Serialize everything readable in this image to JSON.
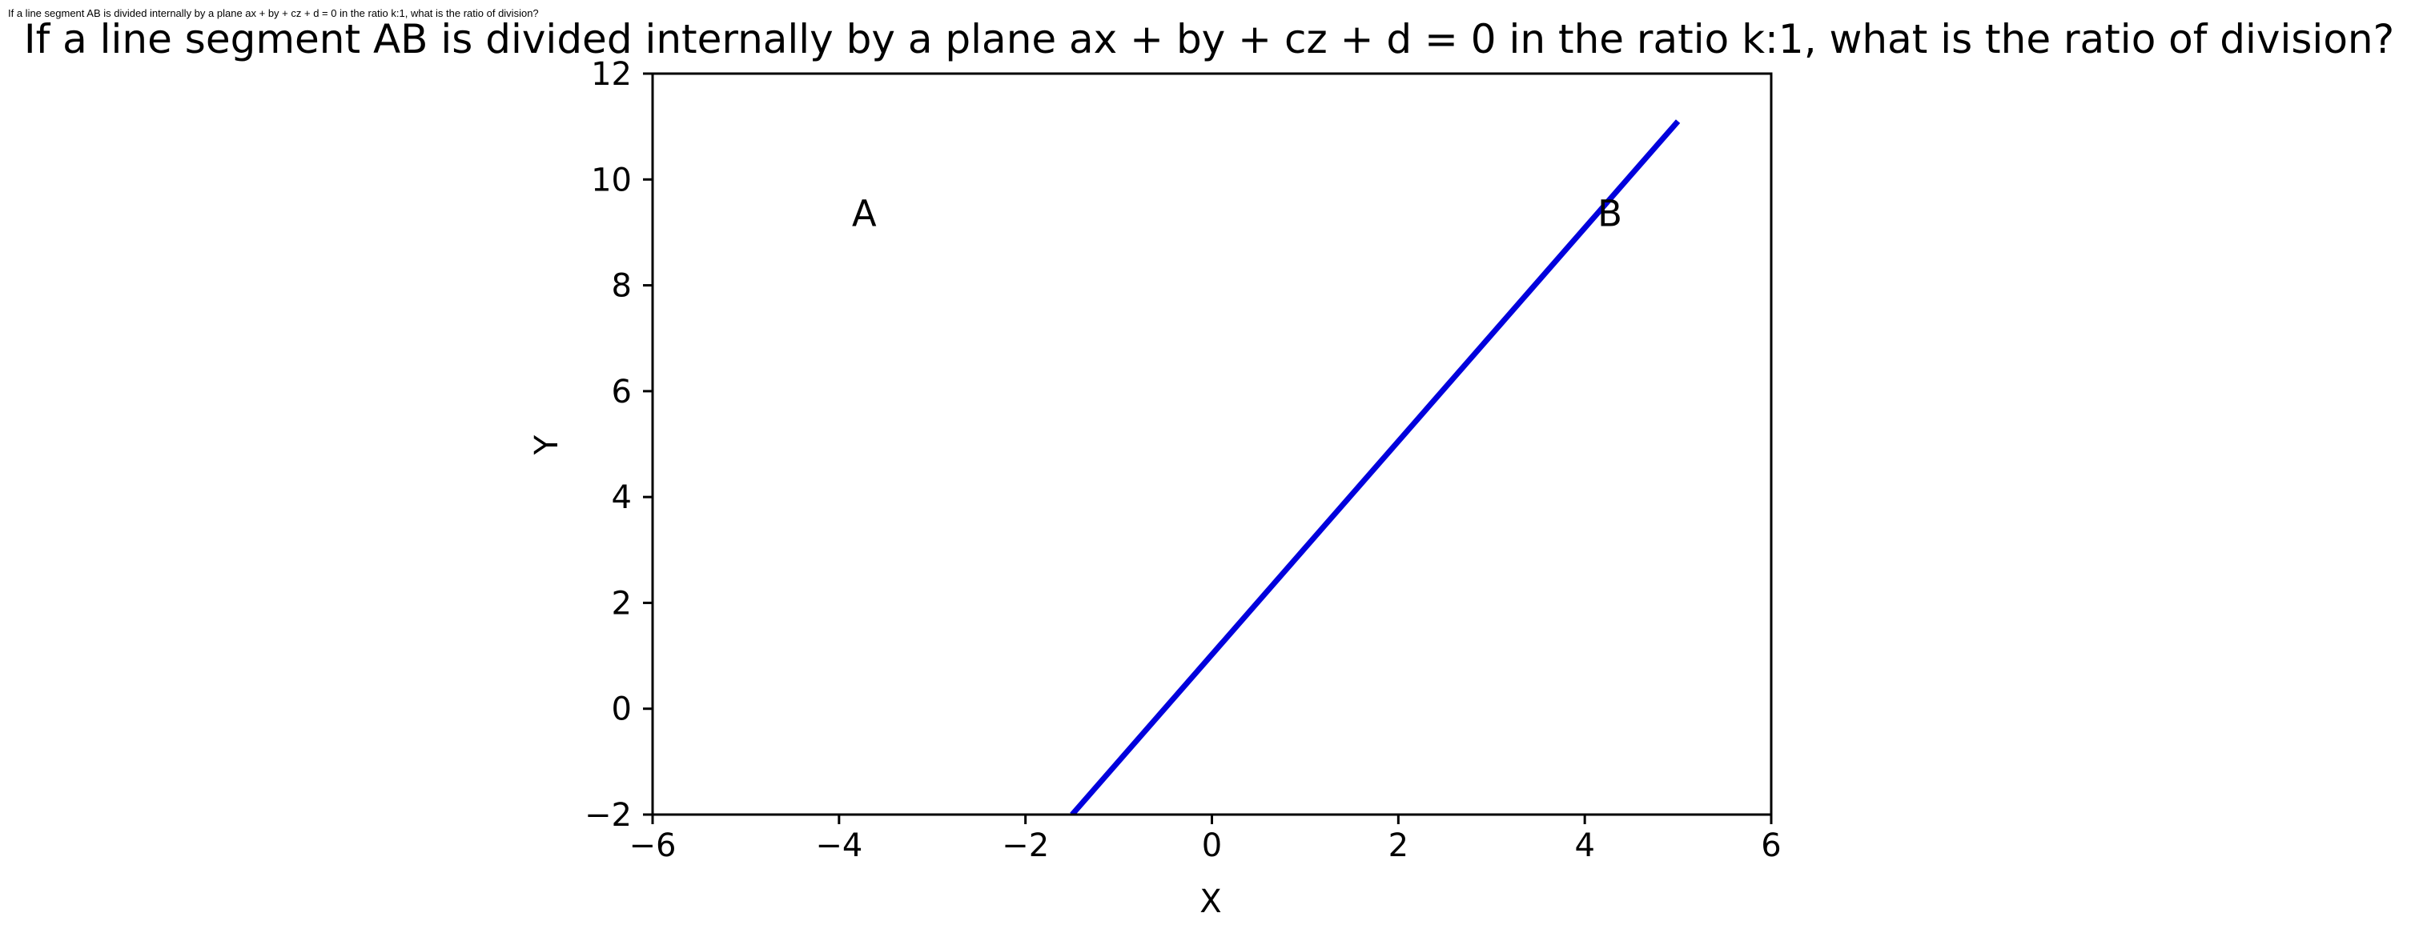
{
  "header": {
    "small_title": "If a line segment AB is divided internally by a plane ax + by + cz + d = 0 in the ratio k:1, what is the ratio of division?"
  },
  "chart_data": {
    "type": "line",
    "title": "If a line segment AB is divided internally by a plane ax + by + cz + d = 0 in the ratio k:1, what is the ratio of division?",
    "xlabel": "X",
    "ylabel": "Y",
    "xlim": [
      -6,
      6
    ],
    "ylim": [
      -2,
      12
    ],
    "x_ticks": [
      -6,
      -4,
      -2,
      0,
      2,
      4,
      6
    ],
    "y_ticks": [
      -2,
      0,
      2,
      4,
      6,
      8,
      10,
      12
    ],
    "x_tick_labels": [
      "−6",
      "−4",
      "−2",
      "0",
      "2",
      "4",
      "6"
    ],
    "y_tick_labels": [
      "−2",
      "0",
      "2",
      "4",
      "6",
      "8",
      "10",
      "12"
    ],
    "grid": false,
    "series": [
      {
        "x": [
          -1.5,
          5
        ],
        "y": [
          -2,
          11.1
        ],
        "color": "#0000dd"
      }
    ],
    "annotations": [
      {
        "text": "A",
        "x": -4,
        "y": 9
      },
      {
        "text": "B",
        "x": 4,
        "y": 9
      }
    ]
  }
}
